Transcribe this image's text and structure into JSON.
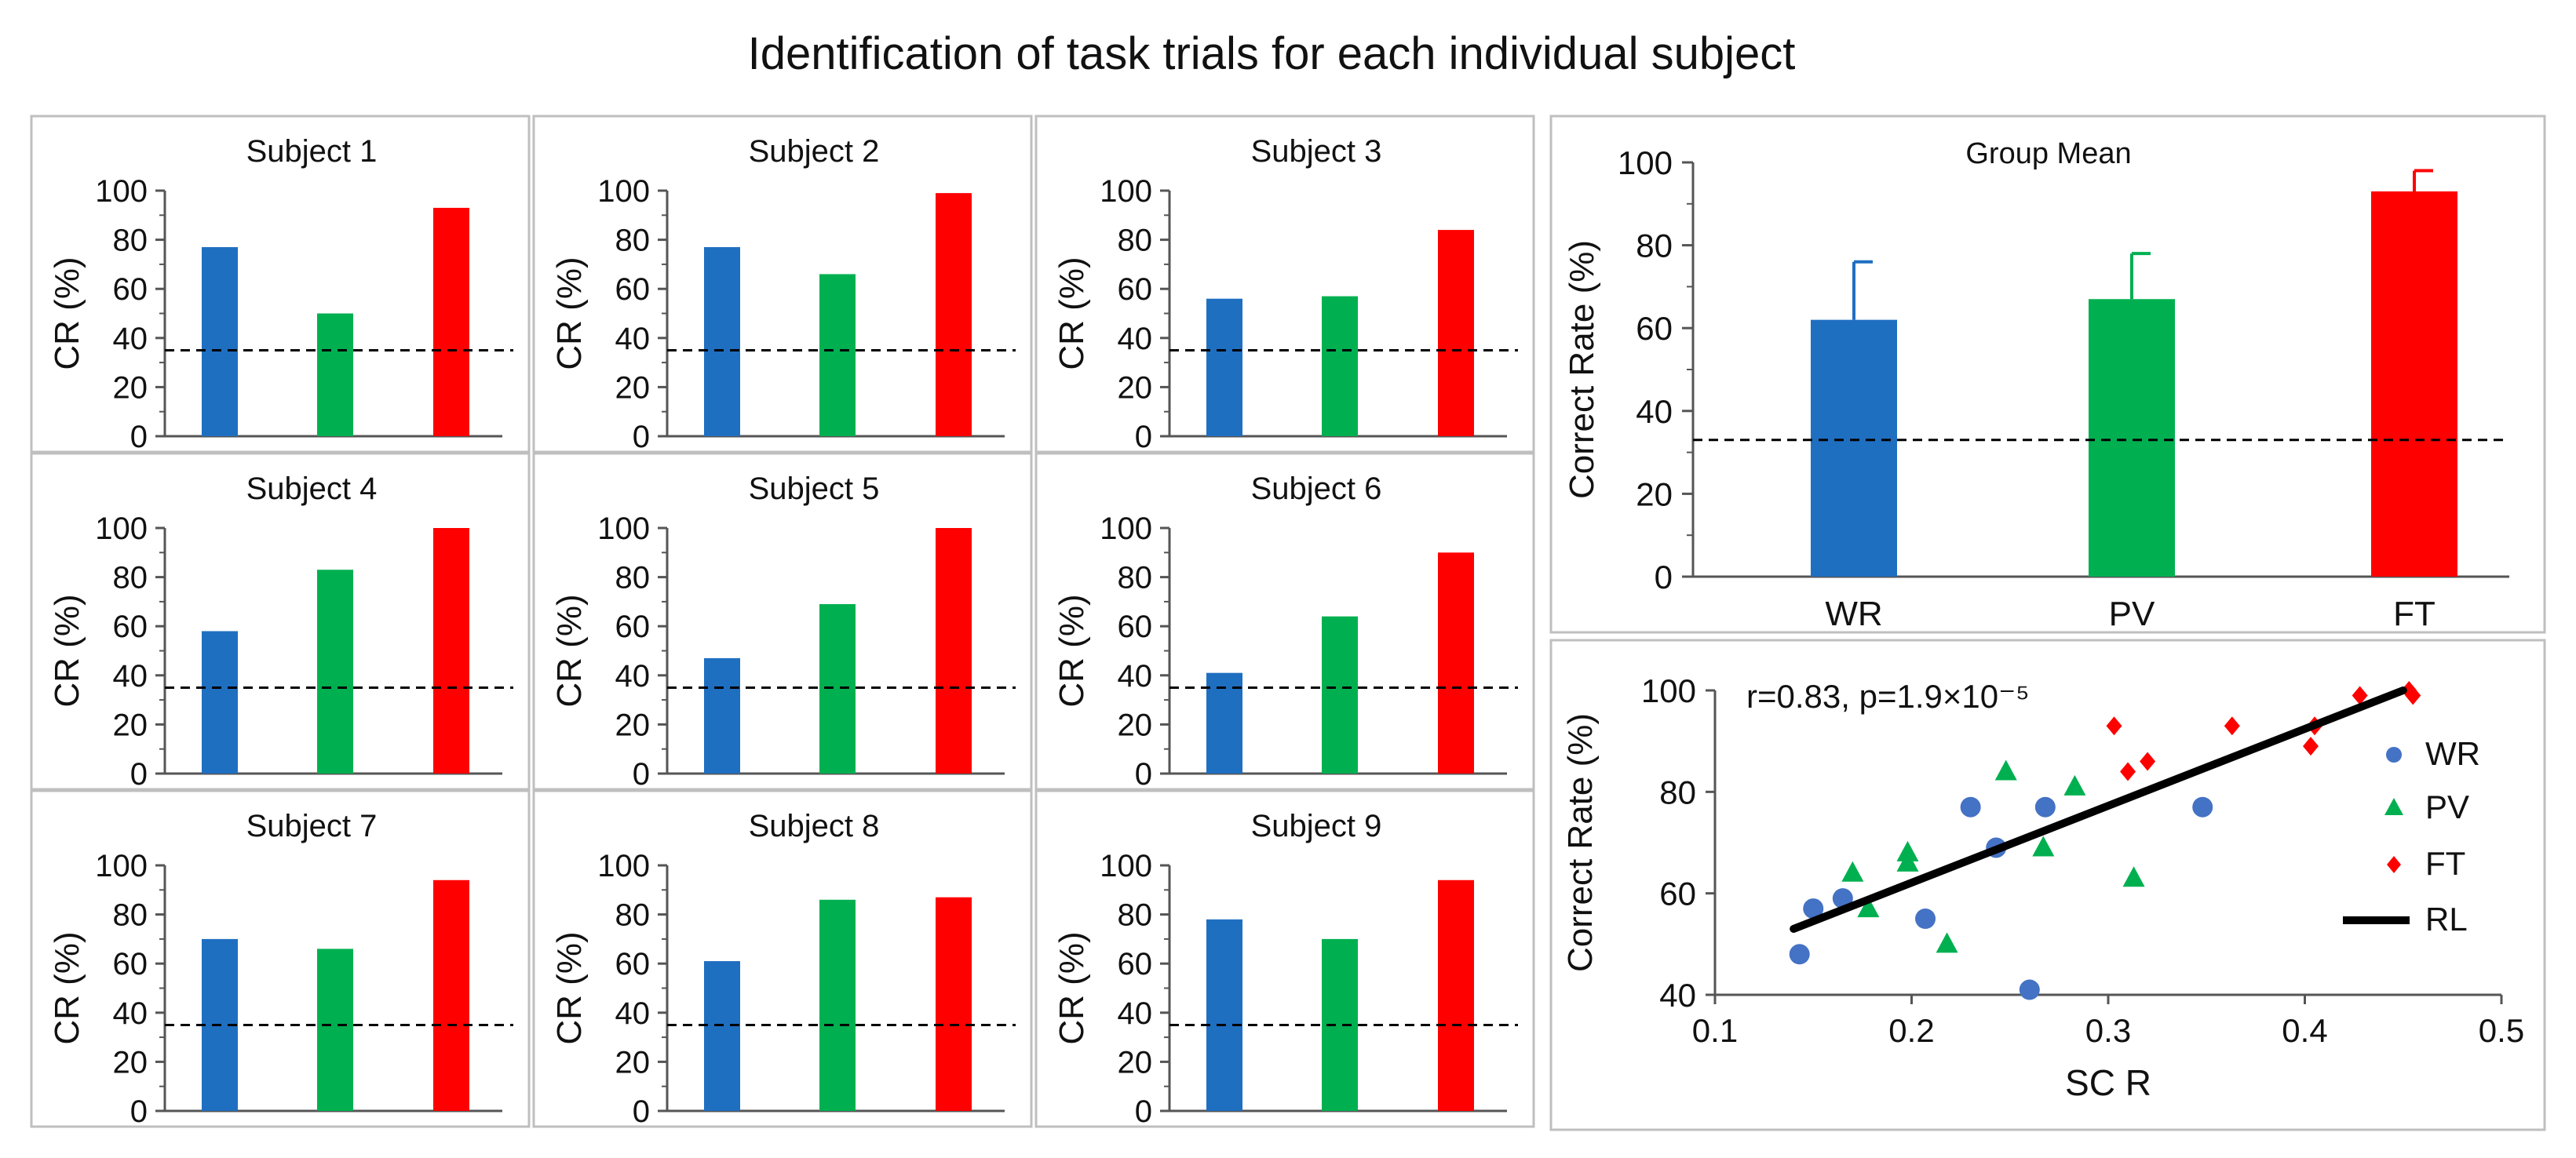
{
  "figure_title": "Identification  of task trials for each individual  subject",
  "colors": {
    "WR": "#1f6fc1",
    "PV": "#00b050",
    "FT": "#ff0000",
    "chance_line": "#000000",
    "frame": "#bfbfbf"
  },
  "chart_data": [
    {
      "type": "bar",
      "title": "Subject 1",
      "categories": [
        "WR",
        "PV",
        "FT"
      ],
      "values": [
        77,
        50,
        93
      ],
      "ylabel": "CR (%)",
      "ylim": [
        0,
        100
      ],
      "yticks": [
        0,
        20,
        40,
        60,
        80,
        100
      ],
      "chance_level": 35
    },
    {
      "type": "bar",
      "title": "Subject 2",
      "categories": [
        "WR",
        "PV",
        "FT"
      ],
      "values": [
        77,
        66,
        99
      ],
      "ylabel": "CR (%)",
      "ylim": [
        0,
        100
      ],
      "yticks": [
        0,
        20,
        40,
        60,
        80,
        100
      ],
      "chance_level": 35
    },
    {
      "type": "bar",
      "title": "Subject 3",
      "categories": [
        "WR",
        "PV",
        "FT"
      ],
      "values": [
        56,
        57,
        84
      ],
      "ylabel": "CR (%)",
      "ylim": [
        0,
        100
      ],
      "yticks": [
        0,
        20,
        40,
        60,
        80,
        100
      ],
      "chance_level": 35
    },
    {
      "type": "bar",
      "title": "Subject 4",
      "categories": [
        "WR",
        "PV",
        "FT"
      ],
      "values": [
        58,
        83,
        100
      ],
      "ylabel": "CR (%)",
      "ylim": [
        0,
        100
      ],
      "yticks": [
        0,
        20,
        40,
        60,
        80,
        100
      ],
      "chance_level": 35
    },
    {
      "type": "bar",
      "title": "Subject 5",
      "categories": [
        "WR",
        "PV",
        "FT"
      ],
      "values": [
        47,
        69,
        100
      ],
      "ylabel": "CR (%)",
      "ylim": [
        0,
        100
      ],
      "yticks": [
        0,
        20,
        40,
        60,
        80,
        100
      ],
      "chance_level": 35
    },
    {
      "type": "bar",
      "title": "Subject 6",
      "categories": [
        "WR",
        "PV",
        "FT"
      ],
      "values": [
        41,
        64,
        90
      ],
      "ylabel": "CR (%)",
      "ylim": [
        0,
        100
      ],
      "yticks": [
        0,
        20,
        40,
        60,
        80,
        100
      ],
      "chance_level": 35
    },
    {
      "type": "bar",
      "title": "Subject 7",
      "categories": [
        "WR",
        "PV",
        "FT"
      ],
      "values": [
        70,
        66,
        94
      ],
      "ylabel": "CR (%)",
      "ylim": [
        0,
        100
      ],
      "yticks": [
        0,
        20,
        40,
        60,
        80,
        100
      ],
      "chance_level": 35
    },
    {
      "type": "bar",
      "title": "Subject 8",
      "categories": [
        "WR",
        "PV",
        "FT"
      ],
      "values": [
        61,
        86,
        87
      ],
      "ylabel": "CR (%)",
      "ylim": [
        0,
        100
      ],
      "yticks": [
        0,
        20,
        40,
        60,
        80,
        100
      ],
      "chance_level": 35
    },
    {
      "type": "bar",
      "title": "Subject 9",
      "categories": [
        "WR",
        "PV",
        "FT"
      ],
      "values": [
        78,
        70,
        94
      ],
      "ylabel": "CR (%)",
      "ylim": [
        0,
        100
      ],
      "yticks": [
        0,
        20,
        40,
        60,
        80,
        100
      ],
      "chance_level": 35
    },
    {
      "type": "bar",
      "title": "Group Mean",
      "categories": [
        "WR",
        "PV",
        "FT"
      ],
      "values": [
        62,
        67,
        93
      ],
      "errors": [
        14,
        11,
        5
      ],
      "ylabel": "Correct Rate (%)",
      "ylim": [
        0,
        100
      ],
      "yticks": [
        0,
        20,
        40,
        60,
        80,
        100
      ],
      "chance_level": 33
    },
    {
      "type": "scatter",
      "title": "",
      "annotation": "r=0.83, p=1.9×10⁻⁵",
      "xlabel": "SC R",
      "ylabel": "Correct Rate (%)",
      "xlim": [
        0.1,
        0.5
      ],
      "ylim": [
        40,
        100
      ],
      "xticks": [
        "0.1",
        "0.2",
        "0.3",
        "0.4",
        "0.5"
      ],
      "yticks": [
        "40",
        "60",
        "80",
        "100"
      ],
      "legend_position": "right",
      "series": [
        {
          "name": "WR",
          "marker": "circle",
          "points": [
            [
              0.143,
              48
            ],
            [
              0.15,
              57
            ],
            [
              0.165,
              59
            ],
            [
              0.207,
              55
            ],
            [
              0.23,
              77
            ],
            [
              0.243,
              69
            ],
            [
              0.268,
              77
            ],
            [
              0.26,
              41
            ],
            [
              0.348,
              77
            ]
          ]
        },
        {
          "name": "PV",
          "marker": "triangle",
          "points": [
            [
              0.17,
              64
            ],
            [
              0.178,
              57
            ],
            [
              0.198,
              68
            ],
            [
              0.198,
              66
            ],
            [
              0.218,
              50
            ],
            [
              0.248,
              84
            ],
            [
              0.267,
              69
            ],
            [
              0.283,
              81
            ],
            [
              0.313,
              63
            ]
          ]
        },
        {
          "name": "FT",
          "marker": "diamond",
          "points": [
            [
              0.303,
              93
            ],
            [
              0.31,
              84
            ],
            [
              0.32,
              86
            ],
            [
              0.363,
              93
            ],
            [
              0.403,
              89
            ],
            [
              0.405,
              93
            ],
            [
              0.428,
              99
            ],
            [
              0.453,
              100
            ],
            [
              0.455,
              99
            ]
          ]
        },
        {
          "name": "RL",
          "marker": "line",
          "points": [
            [
              0.14,
              53
            ],
            [
              0.45,
              100
            ]
          ]
        }
      ]
    }
  ]
}
